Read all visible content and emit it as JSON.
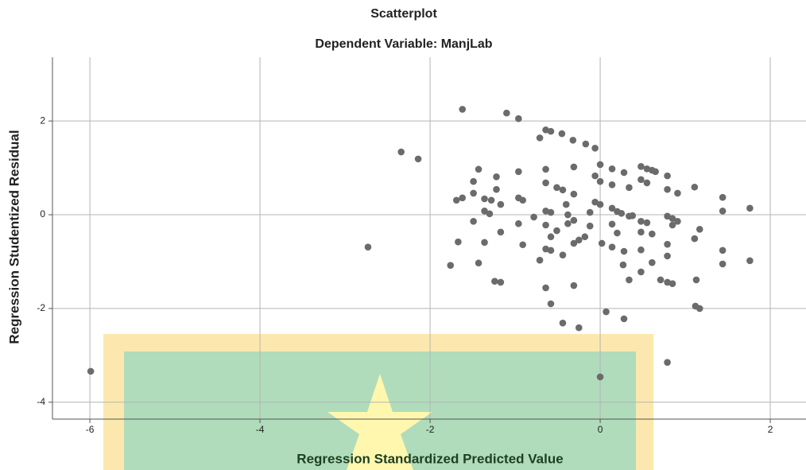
{
  "chart_data": {
    "type": "scatter",
    "title": "Scatterplot",
    "subtitle": "Dependent Variable: ManjLab",
    "x_label": "Regression Standardized Predicted Value",
    "y_label": "Regression Studentized Residual",
    "color": "#6b6b6b",
    "grid": true,
    "xlim": [
      -6.44,
      2.42
    ],
    "ylim": [
      -4.36,
      3.36
    ],
    "xticks": [
      -6,
      -4,
      -2,
      0,
      2
    ],
    "yticks": [
      -4,
      -2,
      0,
      2
    ],
    "x": [
      -1.62,
      -1.1,
      -0.96,
      -2.34,
      -2.14,
      -2.73,
      -5.99,
      -0.64,
      -0.58,
      -0.71,
      -0.45,
      -0.32,
      -0.17,
      -0.06,
      -1.43,
      -1.49,
      -1.22,
      -0.96,
      -0.64,
      -0.31,
      0,
      0.14,
      0.28,
      0.48,
      0.55,
      0.61,
      0.65,
      0.79,
      1.11,
      -1.49,
      -1.69,
      -1.62,
      -1.36,
      -1.28,
      -1.22,
      -1.17,
      -0.96,
      -0.91,
      -0.64,
      -0.51,
      -0.44,
      -0.4,
      -0.31,
      -0.06,
      0,
      0.14,
      0.34,
      0.48,
      0.55,
      0.79,
      0.91,
      1.44,
      1.76,
      1.44,
      -1.36,
      -1.3,
      -1.49,
      -1.17,
      -1.36,
      -1.67,
      -1.76,
      -1.43,
      -1.24,
      -1.17,
      -0.78,
      -0.64,
      -0.58,
      -0.38,
      -0.31,
      -0.12,
      -0.06,
      0,
      0.14,
      0.2,
      0.25,
      0.34,
      0.38,
      0.48,
      0.55,
      0.79,
      0.85,
      0.91,
      0.61,
      0.48,
      0.2,
      0.14,
      -0.12,
      -0.18,
      -0.64,
      -0.58,
      -0.51,
      -0.38,
      -0.25,
      -0.31,
      -0.44,
      -0.64,
      -0.58,
      -0.71,
      -0.91,
      -0.96,
      0.02,
      0.14,
      0.28,
      0.48,
      0.61,
      0.79,
      0.79,
      0.85,
      1.11,
      1.17,
      0.27,
      0.48,
      0.34,
      0.71,
      0.79,
      0.85,
      1.13,
      1.44,
      1.44,
      1.76,
      1.12,
      1.17,
      -0.64,
      -0.58,
      -0.31,
      -0.44,
      -0.25,
      0.07,
      0.28,
      0.79,
      0
    ],
    "values": [
      2.25,
      2.17,
      2.05,
      1.34,
      1.19,
      -0.69,
      -3.34,
      1.81,
      1.78,
      1.64,
      1.73,
      1.59,
      1.51,
      1.42,
      0.97,
      0.71,
      0.81,
      0.92,
      0.97,
      1.02,
      1.07,
      0.98,
      0.9,
      1.03,
      0.98,
      0.95,
      0.92,
      0.83,
      0.59,
      0.46,
      0.31,
      0.36,
      0.34,
      0.31,
      0.54,
      0.22,
      0.36,
      0.31,
      0.68,
      0.58,
      0.53,
      0.22,
      0.44,
      0.83,
      0.71,
      0.64,
      0.58,
      0.75,
      0.68,
      0.54,
      0.46,
      0.37,
      0.14,
      0.08,
      0.08,
      0.02,
      -0.14,
      -0.37,
      -0.59,
      -0.58,
      -1.08,
      -1.03,
      -1.42,
      -1.44,
      -0.05,
      0.08,
      0.05,
      0,
      -0.12,
      0.05,
      0.27,
      0.22,
      0.14,
      0.07,
      0.03,
      -0.03,
      -0.02,
      -0.14,
      -0.17,
      -0.03,
      -0.08,
      -0.14,
      -0.41,
      -0.37,
      -0.39,
      -0.2,
      -0.24,
      -0.47,
      -0.22,
      -0.47,
      -0.34,
      -0.19,
      -0.54,
      -0.61,
      -0.86,
      -0.73,
      -0.76,
      -0.97,
      -0.64,
      -0.19,
      -0.61,
      -0.69,
      -0.78,
      -0.75,
      -1.02,
      -0.88,
      -0.63,
      -0.22,
      -0.51,
      -0.31,
      -1.07,
      -1.22,
      -1.39,
      -1.39,
      -1.44,
      -1.47,
      -1.39,
      -0.76,
      -1.05,
      -0.98,
      -1.95,
      -2.0,
      -1.56,
      -1.9,
      -1.51,
      -2.31,
      -2.41,
      -2.07,
      -2.22,
      -3.15,
      -3.46
    ]
  }
}
